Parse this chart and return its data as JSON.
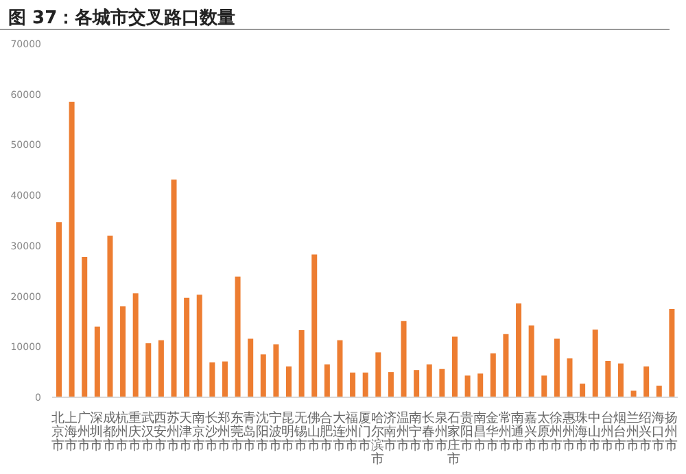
{
  "chart_data": {
    "type": "bar",
    "title": "图 37：各城市交叉路口数量",
    "categories": [
      "北京市",
      "上海市",
      "广州市",
      "深圳市",
      "成都市",
      "杭州市",
      "重庆市",
      "武汉市",
      "西安市",
      "苏州市",
      "天津市",
      "南京市",
      "长沙市",
      "郑州市",
      "东莞市",
      "青岛市",
      "沈阳市",
      "宁波市",
      "昆明市",
      "无锡市",
      "佛山市",
      "合肥市",
      "大连市",
      "福州市",
      "厦门市",
      "哈尔滨市",
      "济南市",
      "温州市",
      "南宁市",
      "长春市",
      "泉州市",
      "石家庄市",
      "贵阳市",
      "南昌市",
      "金华市",
      "常州市",
      "南通市",
      "嘉兴市",
      "太原市",
      "徐州市",
      "惠州市",
      "珠海市",
      "中山市",
      "台州市",
      "烟台市",
      "兰州市",
      "绍兴市",
      "海口市",
      "扬州市"
    ],
    "values": [
      34700,
      58500,
      27800,
      14000,
      32000,
      18000,
      20600,
      10700,
      11300,
      43100,
      19700,
      20300,
      6900,
      7100,
      23900,
      11600,
      8500,
      10500,
      6100,
      13300,
      28300,
      6500,
      11300,
      4900,
      4900,
      8900,
      5000,
      15100,
      5400,
      6500,
      5600,
      12000,
      4300,
      4700,
      8700,
      12500,
      18600,
      14200,
      4300,
      11600,
      7700,
      2700,
      13400,
      7200,
      6700,
      1300,
      6100,
      2300,
      17500
    ],
    "color": "#ed7d31",
    "ylim": [
      0,
      70000
    ],
    "yticks": [
      0,
      10000,
      20000,
      30000,
      40000,
      50000,
      60000,
      70000
    ],
    "grid": false
  }
}
